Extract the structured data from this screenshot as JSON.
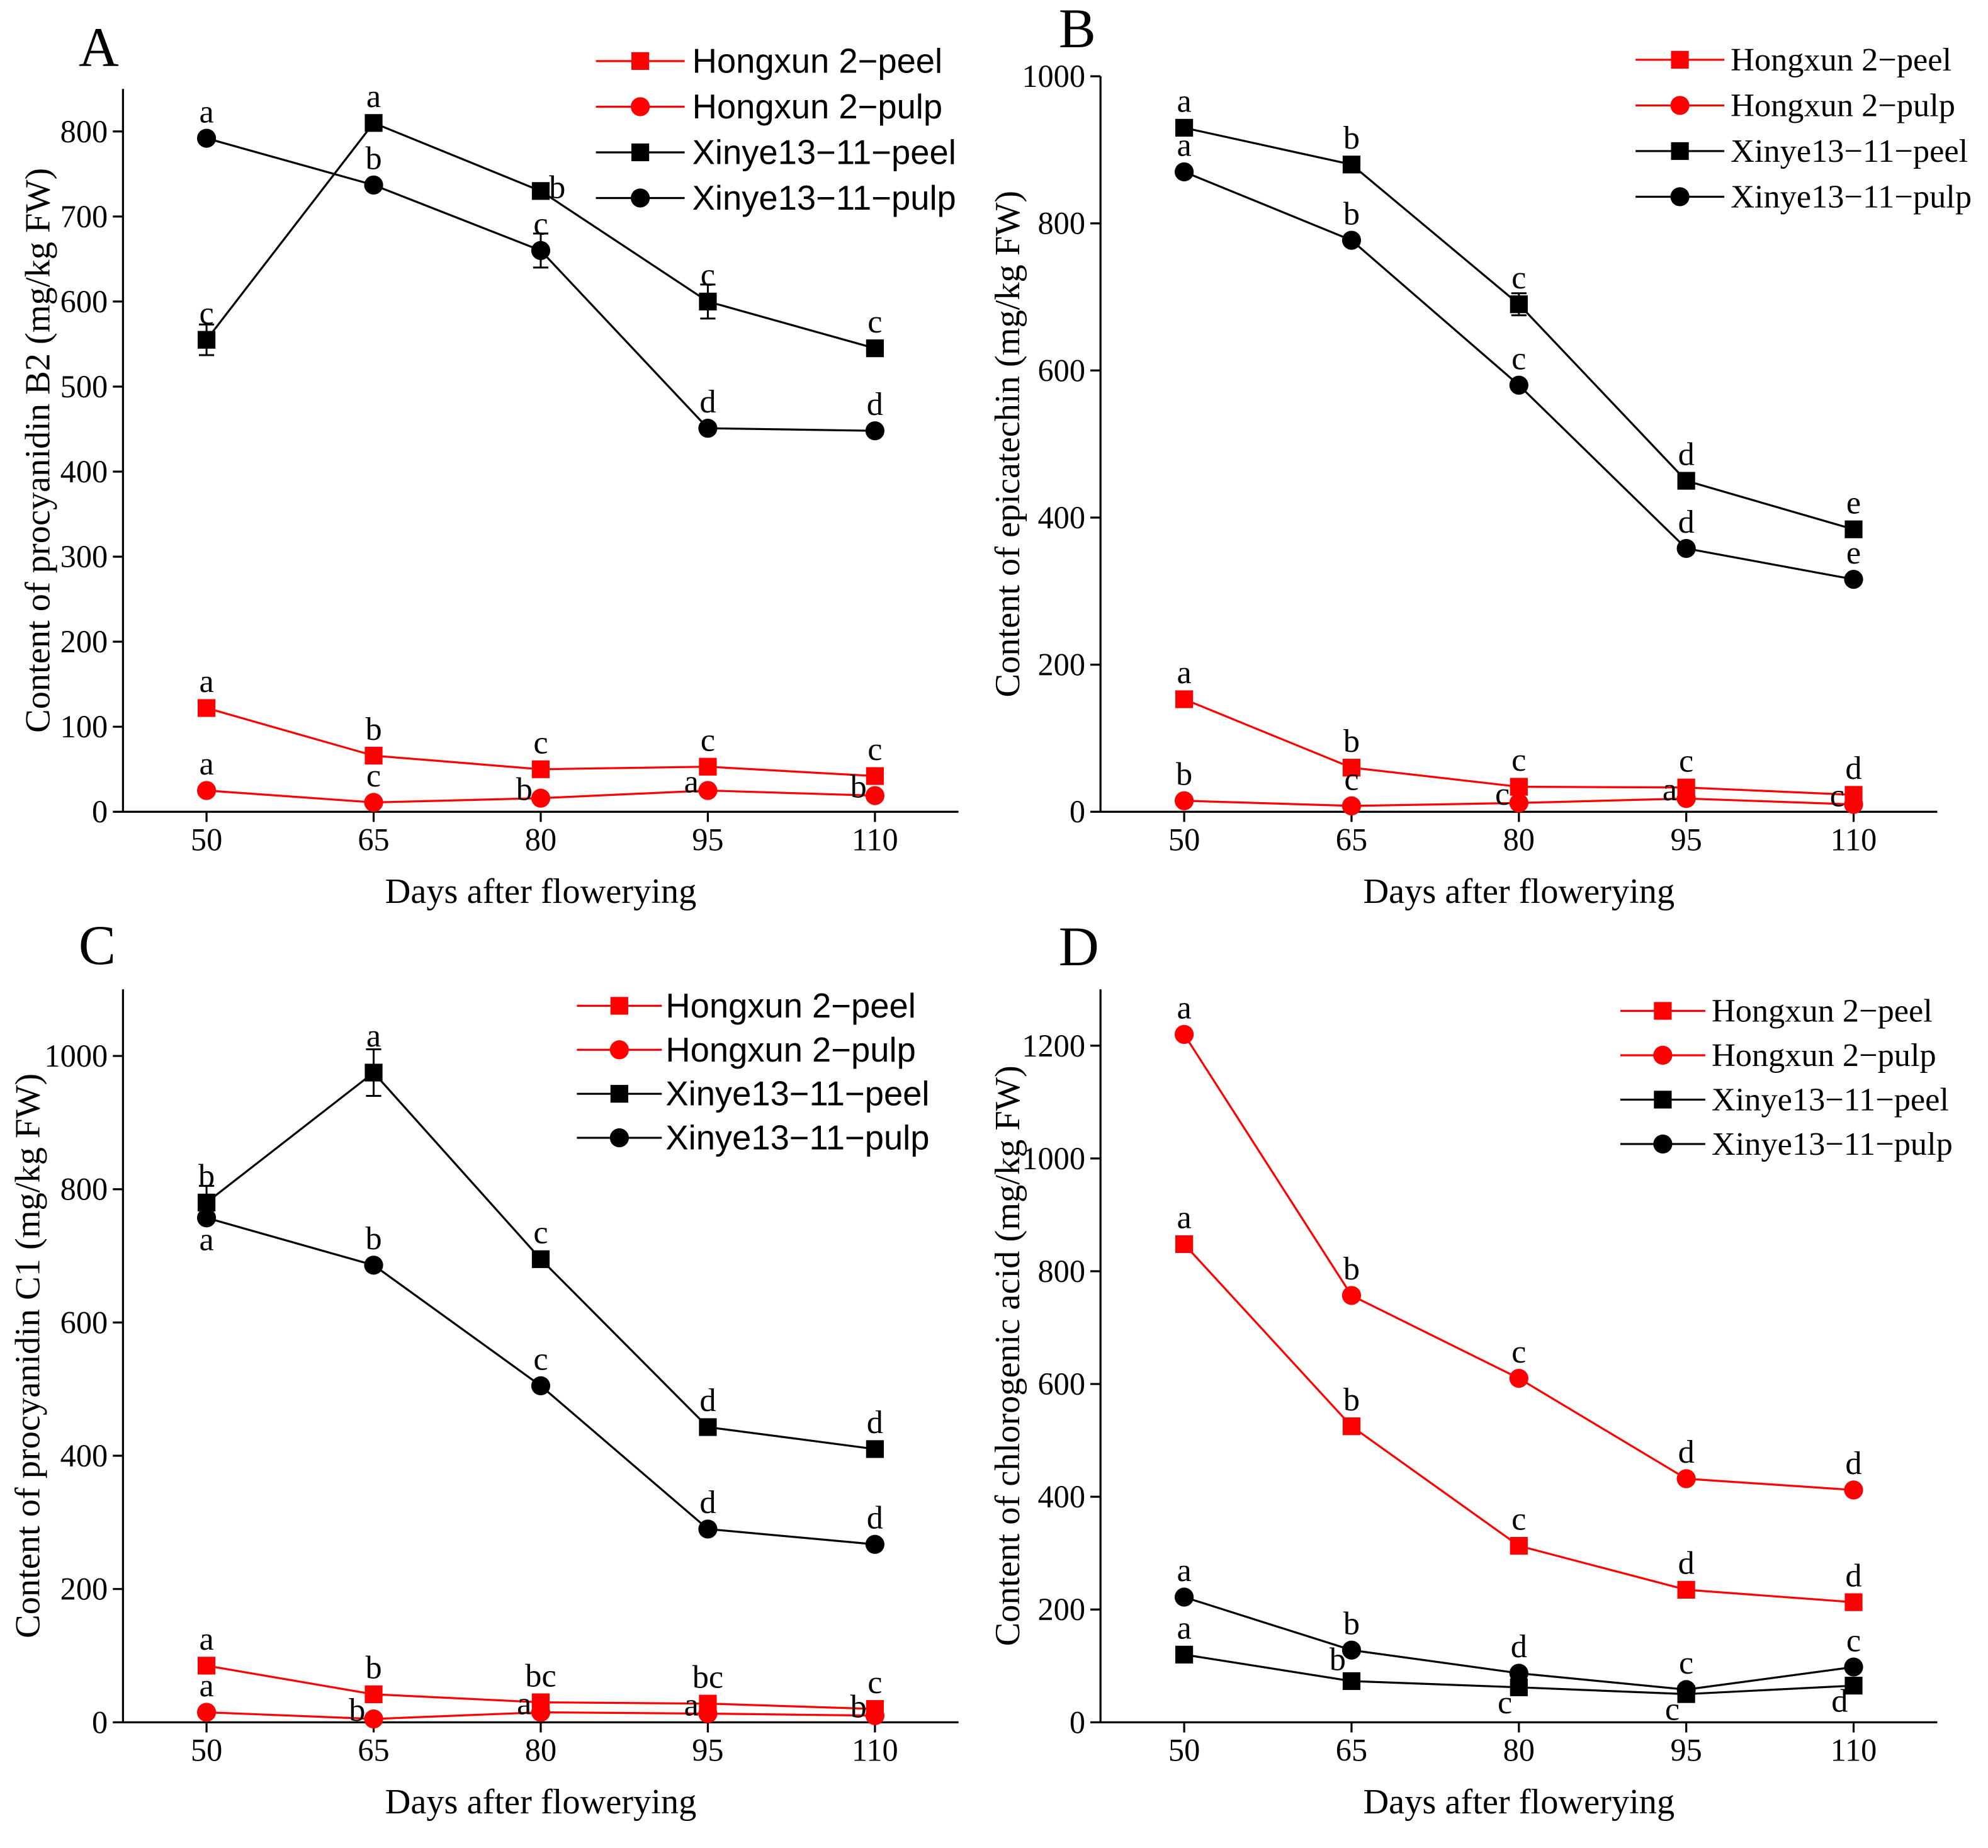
{
  "chart_data": [
    {
      "panel": "A",
      "type": "line",
      "xlabel": "Days after flowerying",
      "ylabel": "Content of procyanidin B2 (mg/kg FW)",
      "x": [
        50,
        65,
        80,
        95,
        110
      ],
      "xlim": [
        42.5,
        117.5
      ],
      "ylim": [
        0,
        850
      ],
      "y_ticks": [
        0,
        100,
        200,
        300,
        400,
        500,
        600,
        700,
        800
      ],
      "legend": "top-right",
      "series": [
        {
          "name": "Hongxun 2−peel",
          "color": "#ff0000",
          "marker": "square",
          "values": [
            122,
            66,
            50,
            53,
            42
          ],
          "letters": [
            "a",
            "b",
            "c",
            "c",
            "c"
          ]
        },
        {
          "name": "Hongxun 2−pulp",
          "color": "#ff0000",
          "marker": "circle",
          "values": [
            25,
            11,
            16,
            25,
            19
          ],
          "letters": [
            "a",
            "c",
            "b",
            "a",
            "b"
          ]
        },
        {
          "name": "Xinye13−11−peel",
          "color": "#000000",
          "marker": "square",
          "values": [
            555,
            810,
            730,
            600,
            545
          ],
          "errors": [
            18,
            0,
            0,
            20,
            0
          ],
          "letters": [
            "c",
            "a",
            "b",
            "c",
            "c"
          ]
        },
        {
          "name": "Xinye13−11−pulp",
          "color": "#000000",
          "marker": "circle",
          "values": [
            792,
            737,
            660,
            451,
            448
          ],
          "errors": [
            0,
            0,
            20,
            0,
            0
          ],
          "letters": [
            "a",
            "b",
            "c",
            "d",
            "d"
          ]
        }
      ]
    },
    {
      "panel": "B",
      "type": "line",
      "xlabel": "Days after flowerying",
      "ylabel": "Content of epicatechin (mg/kg FW)",
      "x": [
        50,
        65,
        80,
        95,
        110
      ],
      "xlim": [
        42.5,
        117.5
      ],
      "ylim": [
        0,
        1000
      ],
      "y_ticks": [
        0,
        200,
        400,
        600,
        800,
        1000
      ],
      "legend": "top-right",
      "series": [
        {
          "name": "Hongxun 2−peel",
          "color": "#ff0000",
          "marker": "square",
          "values": [
            153,
            60,
            34,
            33,
            23
          ],
          "letters": [
            "a",
            "b",
            "c",
            "c",
            "d"
          ]
        },
        {
          "name": "Hongxun 2−pulp",
          "color": "#ff0000",
          "marker": "circle",
          "values": [
            15,
            8,
            12,
            18,
            10
          ],
          "letters": [
            "b",
            "c",
            "c",
            "a",
            "c"
          ]
        },
        {
          "name": "Xinye13−11−peel",
          "color": "#000000",
          "marker": "square",
          "values": [
            930,
            880,
            690,
            450,
            384
          ],
          "errors": [
            0,
            0,
            15,
            10,
            0
          ],
          "letters": [
            "a",
            "b",
            "c",
            "d",
            "e"
          ]
        },
        {
          "name": "Xinye13−11−pulp",
          "color": "#000000",
          "marker": "circle",
          "values": [
            870,
            777,
            580,
            358,
            316
          ],
          "letters": [
            "a",
            "b",
            "c",
            "d",
            "e"
          ]
        }
      ]
    },
    {
      "panel": "C",
      "type": "line",
      "xlabel": "Days after flowerying",
      "ylabel": "Content of procyanidin C1 (mg/kg FW)",
      "x": [
        50,
        65,
        80,
        95,
        110
      ],
      "xlim": [
        42.5,
        117.5
      ],
      "ylim": [
        0,
        1100
      ],
      "y_ticks": [
        0,
        200,
        400,
        600,
        800,
        1000
      ],
      "legend": "top-right",
      "series": [
        {
          "name": "Hongxun 2−peel",
          "color": "#ff0000",
          "marker": "square",
          "values": [
            85,
            42,
            30,
            28,
            20
          ],
          "letters": [
            "a",
            "b",
            "bc",
            "bc",
            "c"
          ]
        },
        {
          "name": "Hongxun 2−pulp",
          "color": "#ff0000",
          "marker": "circle",
          "values": [
            15,
            5,
            15,
            13,
            10
          ],
          "letters": [
            "a",
            "b",
            "a",
            "a",
            "b"
          ]
        },
        {
          "name": "Xinye13−11−peel",
          "color": "#000000",
          "marker": "square",
          "values": [
            780,
            975,
            695,
            443,
            410
          ],
          "errors": [
            25,
            35,
            0,
            0,
            10
          ],
          "letters": [
            "b",
            "a",
            "c",
            "d",
            "d"
          ]
        },
        {
          "name": "Xinye13−11−pulp",
          "color": "#000000",
          "marker": "circle",
          "values": [
            757,
            686,
            505,
            290,
            267
          ],
          "letters": [
            "a",
            "b",
            "c",
            "d",
            "d"
          ]
        }
      ]
    },
    {
      "panel": "D",
      "type": "line",
      "xlabel": "Days after flowerying",
      "ylabel": "Content of chlorogenic acid (mg/kg FW)",
      "x": [
        50,
        65,
        80,
        95,
        110
      ],
      "xlim": [
        42.5,
        117.5
      ],
      "ylim": [
        0,
        1300
      ],
      "y_ticks": [
        0,
        200,
        400,
        600,
        800,
        1000,
        1200
      ],
      "legend": "top-right",
      "series": [
        {
          "name": "Hongxun 2−peel",
          "color": "#ff0000",
          "marker": "square",
          "values": [
            848,
            525,
            313,
            235,
            213
          ],
          "letters": [
            "a",
            "b",
            "c",
            "d",
            "d"
          ]
        },
        {
          "name": "Hongxun 2−pulp",
          "color": "#ff0000",
          "marker": "circle",
          "values": [
            1220,
            757,
            610,
            432,
            412
          ],
          "letters": [
            "a",
            "b",
            "c",
            "d",
            "d"
          ]
        },
        {
          "name": "Xinye13−11−peel",
          "color": "#000000",
          "marker": "square",
          "values": [
            120,
            73,
            62,
            50,
            65
          ],
          "letters": [
            "a",
            "b",
            "c",
            "c",
            "d"
          ]
        },
        {
          "name": "Xinye13−11−pulp",
          "color": "#000000",
          "marker": "circle",
          "values": [
            222,
            128,
            87,
            58,
            98
          ],
          "letters": [
            "a",
            "b",
            "d",
            "c",
            "c"
          ]
        }
      ]
    }
  ]
}
